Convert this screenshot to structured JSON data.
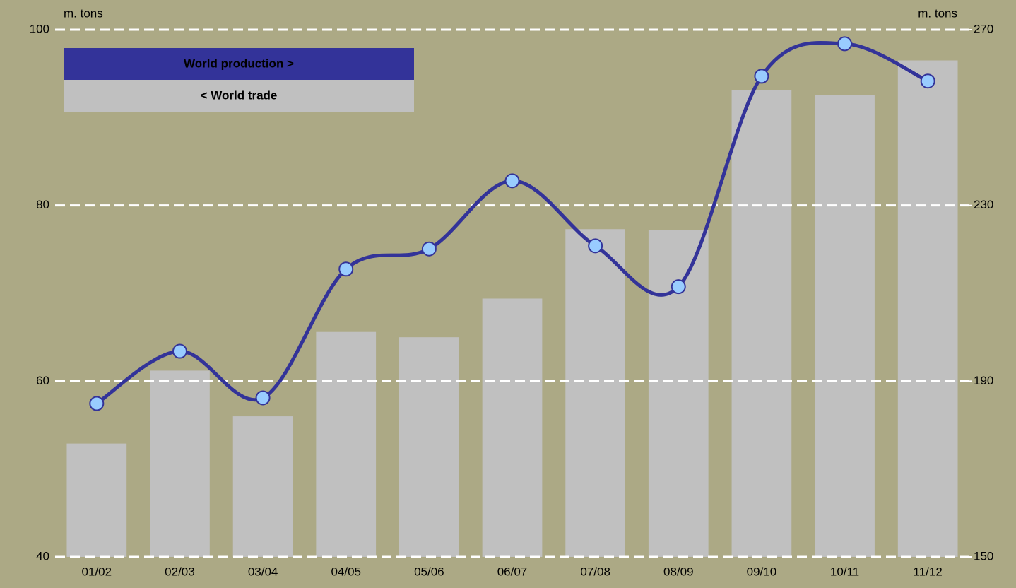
{
  "chart_data": {
    "type": "bar_line",
    "y_label": "m. tons",
    "y2_label": "m. tons",
    "categories": [
      "01/02",
      "02/03",
      "03/04",
      "04/05",
      "05/06",
      "06/07",
      "07/08",
      "08/09",
      "09/10",
      "10/11",
      "11/12"
    ],
    "series": [
      {
        "name": "< World trade",
        "type": "bar",
        "color": "#c0c0c0",
        "axis": "y",
        "values": [
          52.9,
          61.2,
          56.0,
          65.6,
          65.0,
          69.4,
          77.3,
          77.2,
          93.1,
          92.6,
          96.5
        ]
      },
      {
        "name": "World production >",
        "type": "line",
        "color": "#333399",
        "marker_color": "#99ccff",
        "axis": "y2",
        "values": [
          184.9,
          196.8,
          186.2,
          215.5,
          220.1,
          235.6,
          220.8,
          211.5,
          259.4,
          266.8,
          258.3
        ]
      }
    ],
    "ylim": [
      40,
      100
    ],
    "yticks": [
      40,
      60,
      80,
      100
    ],
    "y2lim": [
      150,
      270
    ],
    "y2ticks": [
      150,
      190,
      230,
      270
    ],
    "grid": true
  }
}
